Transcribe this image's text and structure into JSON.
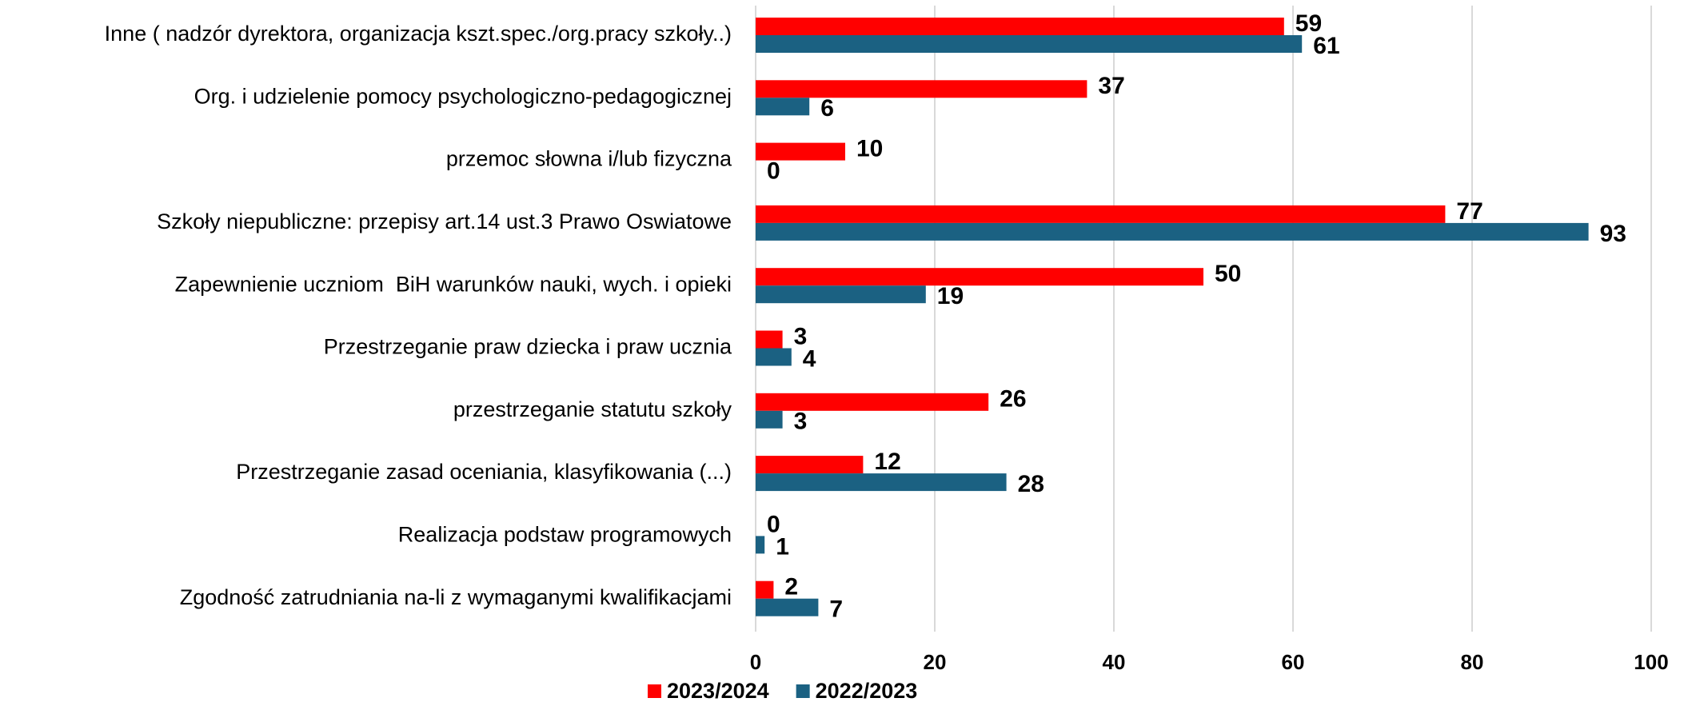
{
  "chart_data": {
    "type": "bar",
    "orientation": "horizontal",
    "categories": [
      "Inne ( nadzór dyrektora, organizacja kszt.spec./org.pracy szkoły..)",
      "Org. i udzielenie pomocy psychologiczno-pedagogicznej",
      "przemoc słowna i/lub fizyczna",
      "Szkoły niepubliczne: przepisy art.14 ust.3 Prawo Oswiatowe",
      "Zapewnienie uczniom  BiH warunków nauki, wych. i opieki",
      "Przestrzeganie praw dziecka i praw ucznia",
      "przestrzeganie statutu szkoły",
      "Przestrzeganie zasad oceniania, klasyfikowania (...)",
      "Realizacja podstaw programowych",
      "Zgodność zatrudniania na-li z wymaganymi kwalifikacjami"
    ],
    "series": [
      {
        "name": "2023/2024",
        "color": "#ff0000",
        "values": [
          59,
          37,
          10,
          77,
          50,
          3,
          26,
          12,
          0,
          2
        ]
      },
      {
        "name": "2022/2023",
        "color": "#1b6182",
        "values": [
          61,
          6,
          0,
          93,
          19,
          4,
          3,
          28,
          1,
          7
        ]
      }
    ],
    "xlim": [
      0,
      100
    ],
    "xticks": [
      0,
      20,
      40,
      60,
      80,
      100
    ],
    "grid": true,
    "legend": "bottom"
  }
}
